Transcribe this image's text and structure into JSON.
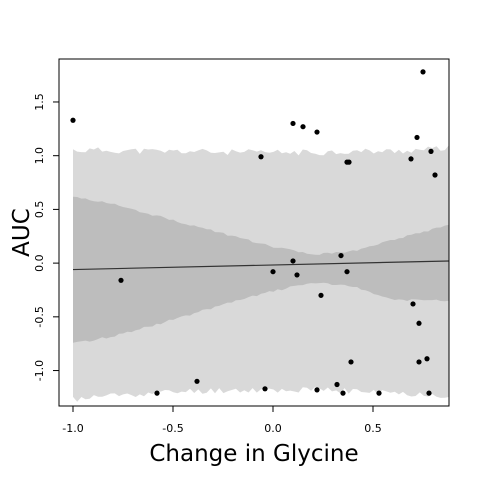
{
  "chart_data": {
    "type": "scatter",
    "title": "",
    "xlabel": "Change in Glycine",
    "ylabel": "AUC",
    "xlim": [
      -1.07,
      0.88
    ],
    "ylim": [
      -1.33,
      1.9
    ],
    "xticks": [
      -1.0,
      -0.5,
      0.0,
      0.5
    ],
    "xtick_labels": [
      "-1.0",
      "-0.5",
      "0.0",
      "0.5"
    ],
    "yticks": [
      -1.0,
      -0.5,
      0.0,
      0.5,
      1.0,
      1.5
    ],
    "ytick_labels": [
      "-1.0",
      "-0.5",
      "0.0",
      "0.5",
      "1.0",
      "1.5"
    ],
    "grid": false,
    "colors": {
      "outer_band": "#d9d9d9",
      "inner_band": "#bdbdbd",
      "line": "#333333",
      "points": "#000000"
    },
    "regression_line": {
      "x": [
        -1.0,
        0.88
      ],
      "y": [
        -0.06,
        0.02
      ]
    },
    "outer_band": {
      "x": [
        -1.0,
        -0.8,
        -0.6,
        -0.4,
        -0.2,
        0.0,
        0.2,
        0.4,
        0.6,
        0.88
      ],
      "upper": [
        1.05,
        1.05,
        1.04,
        1.04,
        1.03,
        1.03,
        1.03,
        1.04,
        1.04,
        1.07
      ],
      "lower": [
        -1.27,
        -1.23,
        -1.21,
        -1.19,
        -1.18,
        -1.18,
        -1.18,
        -1.19,
        -1.21,
        -1.23
      ]
    },
    "inner_band": {
      "x": [
        -1.0,
        -0.8,
        -0.6,
        -0.4,
        -0.2,
        0.0,
        0.2,
        0.4,
        0.6,
        0.88
      ],
      "upper": [
        0.62,
        0.55,
        0.45,
        0.35,
        0.25,
        0.15,
        0.08,
        0.11,
        0.22,
        0.35
      ],
      "lower": [
        -0.75,
        -0.68,
        -0.58,
        -0.47,
        -0.36,
        -0.26,
        -0.18,
        -0.22,
        -0.34,
        -0.35
      ]
    },
    "points": [
      {
        "x": -1.0,
        "y": 1.33
      },
      {
        "x": -0.76,
        "y": -0.16
      },
      {
        "x": -0.58,
        "y": -1.21
      },
      {
        "x": -0.38,
        "y": -1.1
      },
      {
        "x": -0.06,
        "y": 0.99
      },
      {
        "x": -0.04,
        "y": -1.17
      },
      {
        "x": 0.0,
        "y": -0.08
      },
      {
        "x": 0.1,
        "y": 1.3
      },
      {
        "x": 0.1,
        "y": 0.02
      },
      {
        "x": 0.12,
        "y": -0.11
      },
      {
        "x": 0.15,
        "y": 1.27
      },
      {
        "x": 0.22,
        "y": 1.22
      },
      {
        "x": 0.22,
        "y": -1.18
      },
      {
        "x": 0.24,
        "y": -0.3
      },
      {
        "x": 0.32,
        "y": -1.13
      },
      {
        "x": 0.34,
        "y": 0.07
      },
      {
        "x": 0.35,
        "y": -1.21
      },
      {
        "x": 0.37,
        "y": -0.08
      },
      {
        "x": 0.37,
        "y": 0.94
      },
      {
        "x": 0.38,
        "y": 0.94
      },
      {
        "x": 0.39,
        "y": -0.92
      },
      {
        "x": 0.53,
        "y": -1.21
      },
      {
        "x": 0.69,
        "y": 0.97
      },
      {
        "x": 0.7,
        "y": -0.38
      },
      {
        "x": 0.72,
        "y": 1.17
      },
      {
        "x": 0.73,
        "y": -0.56
      },
      {
        "x": 0.73,
        "y": -0.92
      },
      {
        "x": 0.75,
        "y": 1.78
      },
      {
        "x": 0.77,
        "y": -0.89
      },
      {
        "x": 0.78,
        "y": -1.21
      },
      {
        "x": 0.79,
        "y": 1.04
      },
      {
        "x": 0.81,
        "y": 0.82
      }
    ]
  }
}
